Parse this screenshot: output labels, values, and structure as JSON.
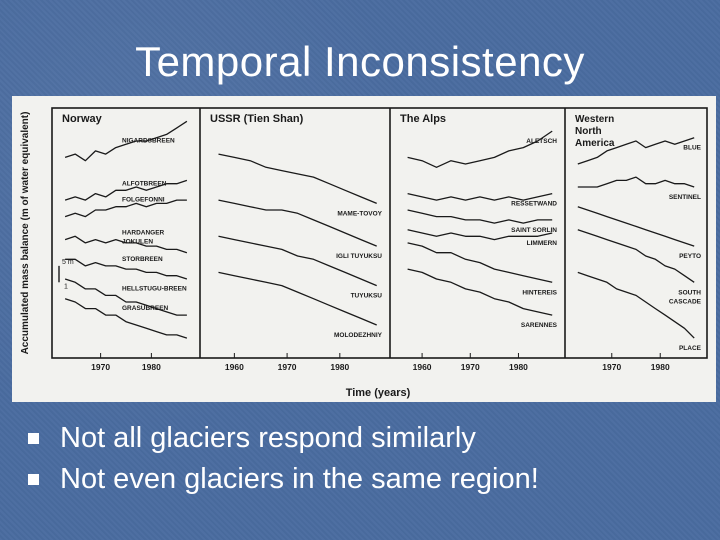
{
  "slide": {
    "title": "Temporal Inconsistency",
    "bullets": [
      "Not all glaciers respond similarly",
      "Not even glaciers in the same region!"
    ]
  },
  "colors": {
    "background": "#4a6ca0",
    "figure": "#f2f2ef",
    "ink": "#1a1a1a",
    "text": "#ffffff"
  },
  "icons": {
    "bullet": "square-bullet-icon"
  },
  "chart_data": {
    "type": "line",
    "ylabel": "Accumulated mass balance (m of water equivalent)",
    "xlabel": "Time (years)",
    "scale_bar": {
      "label_top": "5 m",
      "label_bottom": "1",
      "meters": 5
    },
    "panels": [
      {
        "name": "Norway",
        "x_ticks": [
          1970,
          1980
        ],
        "xlim": [
          1962,
          1988
        ],
        "series": [
          {
            "name": "NIGARDSBREEN",
            "x": [
              1963,
              1965,
              1967,
              1969,
              1971,
              1973,
              1975,
              1977,
              1979,
              1981,
              1983,
              1985,
              1987
            ],
            "y": [
              0,
              1,
              -1,
              2,
              1,
              3,
              4,
              5,
              5,
              6,
              7,
              9,
              11
            ]
          },
          {
            "name": "ALFOTBREEN",
            "x": [
              1963,
              1965,
              1967,
              1969,
              1971,
              1973,
              1975,
              1977,
              1979,
              1981,
              1983,
              1985,
              1987
            ],
            "y": [
              -13,
              -12,
              -13,
              -11,
              -12,
              -10,
              -10,
              -9,
              -10,
              -9,
              -8,
              -8,
              -7
            ]
          },
          {
            "name": "FOLGEFONNI",
            "x": [
              1963,
              1965,
              1967,
              1969,
              1971,
              1973,
              1975,
              1977,
              1979,
              1981,
              1983,
              1985,
              1987
            ],
            "y": [
              -18,
              -17,
              -18,
              -16,
              -16,
              -15,
              -15,
              -14,
              -15,
              -14,
              -14,
              -13,
              -13
            ]
          },
          {
            "name": "HARDANGER JOKULEN",
            "x": [
              1963,
              1965,
              1967,
              1969,
              1971,
              1973,
              1975,
              1977,
              1979,
              1981,
              1983,
              1985,
              1987
            ],
            "y": [
              -25,
              -24,
              -26,
              -25,
              -26,
              -25,
              -26,
              -26,
              -27,
              -27,
              -28,
              -28,
              -29
            ]
          },
          {
            "name": "STORBREEN",
            "x": [
              1963,
              1965,
              1967,
              1969,
              1971,
              1973,
              1975,
              1977,
              1979,
              1981,
              1983,
              1985,
              1987
            ],
            "y": [
              -31,
              -31,
              -33,
              -32,
              -33,
              -33,
              -34,
              -34,
              -35,
              -35,
              -36,
              -36,
              -37
            ]
          },
          {
            "name": "HELLSTUGU-BREEN",
            "x": [
              1963,
              1965,
              1967,
              1969,
              1971,
              1973,
              1975,
              1977,
              1979,
              1981,
              1983,
              1985,
              1987
            ],
            "y": [
              -37,
              -38,
              -40,
              -40,
              -42,
              -42,
              -44,
              -44,
              -45,
              -46,
              -47,
              -48,
              -48
            ]
          },
          {
            "name": "GRASUBREEN",
            "x": [
              1963,
              1965,
              1967,
              1969,
              1971,
              1973,
              1975,
              1977,
              1979,
              1981,
              1983,
              1985,
              1987
            ],
            "y": [
              -43,
              -44,
              -46,
              -46,
              -48,
              -48,
              -50,
              -51,
              -52,
              -53,
              -54,
              -54,
              -55
            ]
          }
        ]
      },
      {
        "name": "USSR (Tien Shan)",
        "x_ticks": [
          1960,
          1970,
          1980
        ],
        "xlim": [
          1955,
          1988
        ],
        "series": [
          {
            "name": "MAME-TOVOY",
            "x": [
              1957,
              1960,
              1963,
              1966,
              1969,
              1972,
              1975,
              1978,
              1981,
              1984,
              1987
            ],
            "y": [
              1,
              0,
              -1,
              -3,
              -4,
              -5,
              -6,
              -8,
              -10,
              -12,
              -14
            ]
          },
          {
            "name": "IGLI TUYUKSU",
            "x": [
              1957,
              1960,
              1963,
              1966,
              1969,
              1972,
              1975,
              1978,
              1981,
              1984,
              1987
            ],
            "y": [
              -13,
              -14,
              -15,
              -16,
              -16,
              -17,
              -19,
              -21,
              -23,
              -25,
              -27
            ]
          },
          {
            "name": "TUYUKSU",
            "x": [
              1957,
              1960,
              1963,
              1966,
              1969,
              1972,
              1975,
              1978,
              1981,
              1984,
              1987
            ],
            "y": [
              -24,
              -25,
              -26,
              -27,
              -28,
              -30,
              -31,
              -33,
              -35,
              -37,
              -39
            ]
          },
          {
            "name": "MOLODEZHNIY",
            "x": [
              1957,
              1960,
              1963,
              1966,
              1969,
              1972,
              1975,
              1978,
              1981,
              1984,
              1987
            ],
            "y": [
              -35,
              -36,
              -37,
              -38,
              -39,
              -41,
              -43,
              -45,
              -47,
              -49,
              -51
            ]
          }
        ]
      },
      {
        "name": "The Alps",
        "x_ticks": [
          1960,
          1970,
          1980
        ],
        "xlim": [
          1955,
          1988
        ],
        "series": [
          {
            "name": "ALETSCH",
            "x": [
              1957,
              1960,
              1963,
              1966,
              1969,
              1972,
              1975,
              1978,
              1981,
              1984,
              1987
            ],
            "y": [
              0,
              -1,
              -3,
              -1,
              -2,
              -1,
              0,
              2,
              3,
              5,
              8
            ]
          },
          {
            "name": "RESSETWAND",
            "x": [
              1957,
              1960,
              1963,
              1966,
              1969,
              1972,
              1975,
              1978,
              1981,
              1984,
              1987
            ],
            "y": [
              -11,
              -12,
              -13,
              -12,
              -13,
              -12,
              -13,
              -12,
              -13,
              -12,
              -11
            ]
          },
          {
            "name": "SAINT SORLIN",
            "x": [
              1957,
              1960,
              1963,
              1966,
              1969,
              1972,
              1975,
              1978,
              1981,
              1984,
              1987
            ],
            "y": [
              -16,
              -17,
              -18,
              -18,
              -19,
              -19,
              -20,
              -19,
              -20,
              -19,
              -19
            ]
          },
          {
            "name": "LIMMERN",
            "x": [
              1957,
              1960,
              1963,
              1966,
              1969,
              1972,
              1975,
              1978,
              1981,
              1984,
              1987
            ],
            "y": [
              -22,
              -23,
              -24,
              -23,
              -24,
              -24,
              -25,
              -24,
              -24,
              -24,
              -23
            ]
          },
          {
            "name": "HINTEREIS",
            "x": [
              1957,
              1960,
              1963,
              1966,
              1969,
              1972,
              1975,
              1978,
              1981,
              1984,
              1987
            ],
            "y": [
              -26,
              -27,
              -29,
              -29,
              -31,
              -32,
              -34,
              -35,
              -36,
              -37,
              -38
            ]
          },
          {
            "name": "SARENNES",
            "x": [
              1957,
              1960,
              1963,
              1966,
              1969,
              1972,
              1975,
              1978,
              1981,
              1984,
              1987
            ],
            "y": [
              -34,
              -35,
              -37,
              -38,
              -40,
              -41,
              -43,
              -44,
              -46,
              -47,
              -48
            ]
          }
        ]
      },
      {
        "name": "Western North America",
        "x_ticks": [
          1970,
          1980
        ],
        "xlim": [
          1962,
          1988
        ],
        "series": [
          {
            "name": "BLUE",
            "x": [
              1963,
              1965,
              1967,
              1969,
              1971,
              1973,
              1975,
              1977,
              1979,
              1981,
              1983,
              1985,
              1987
            ],
            "y": [
              -2,
              -1,
              0,
              2,
              3,
              4,
              5,
              3,
              4,
              5,
              4,
              5,
              6
            ]
          },
          {
            "name": "SENTINEL",
            "x": [
              1963,
              1965,
              1967,
              1969,
              1971,
              1973,
              1975,
              1977,
              1979,
              1981,
              1983,
              1985,
              1987
            ],
            "y": [
              -9,
              -9,
              -9,
              -8,
              -7,
              -7,
              -6,
              -8,
              -8,
              -7,
              -8,
              -8,
              -9
            ]
          },
          {
            "name": "PEYTO",
            "x": [
              1963,
              1965,
              1967,
              1969,
              1971,
              1973,
              1975,
              1977,
              1979,
              1981,
              1983,
              1985,
              1987
            ],
            "y": [
              -15,
              -16,
              -17,
              -18,
              -19,
              -20,
              -21,
              -22,
              -23,
              -24,
              -25,
              -26,
              -27
            ]
          },
          {
            "name": "SOUTH CASCADE",
            "x": [
              1963,
              1965,
              1967,
              1969,
              1971,
              1973,
              1975,
              1977,
              1979,
              1981,
              1983,
              1985,
              1987
            ],
            "y": [
              -22,
              -23,
              -24,
              -25,
              -26,
              -27,
              -28,
              -30,
              -31,
              -33,
              -34,
              -36,
              -38
            ]
          },
          {
            "name": "PLACE",
            "x": [
              1963,
              1965,
              1967,
              1969,
              1971,
              1973,
              1975,
              1977,
              1979,
              1981,
              1983,
              1985,
              1987
            ],
            "y": [
              -35,
              -36,
              -37,
              -38,
              -40,
              -41,
              -42,
              -44,
              -46,
              -48,
              -50,
              -52,
              -55
            ]
          }
        ]
      }
    ]
  }
}
